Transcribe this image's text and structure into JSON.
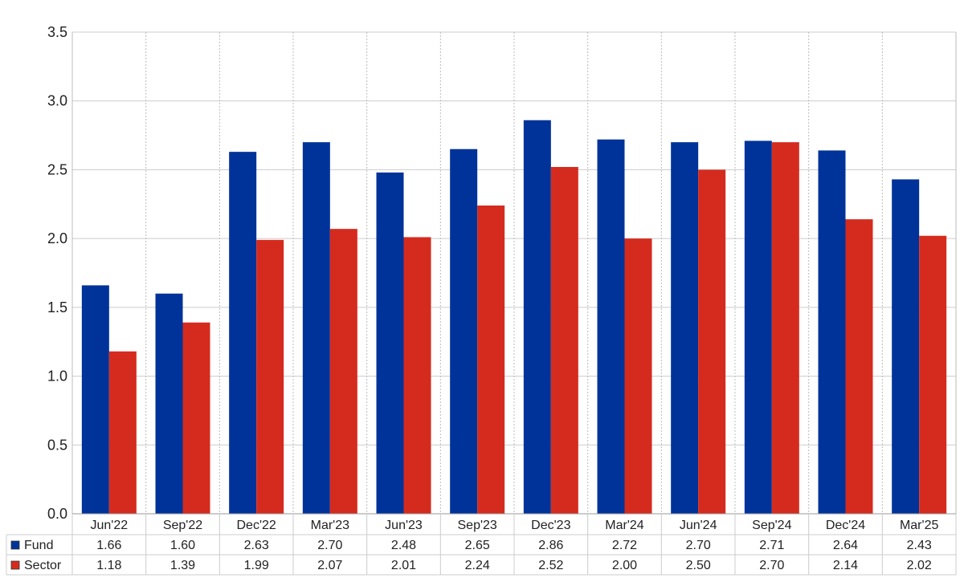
{
  "chart_data": {
    "type": "bar",
    "categories": [
      "Jun'22",
      "Sep'22",
      "Dec'22",
      "Mar'23",
      "Jun'23",
      "Sep'23",
      "Dec'23",
      "Mar'24",
      "Jun'24",
      "Sep'24",
      "Dec'24",
      "Mar'25"
    ],
    "series": [
      {
        "name": "Fund",
        "color": "#003399",
        "values": [
          1.66,
          1.6,
          2.63,
          2.7,
          2.48,
          2.65,
          2.86,
          2.72,
          2.7,
          2.71,
          2.64,
          2.43
        ]
      },
      {
        "name": "Sector",
        "color": "#d52b1e",
        "values": [
          1.18,
          1.39,
          1.99,
          2.07,
          2.01,
          2.24,
          2.52,
          2.0,
          2.5,
          2.7,
          2.14,
          2.02
        ]
      }
    ],
    "table_values": {
      "Fund": [
        "1.66",
        "1.60",
        "2.63",
        "2.70",
        "2.48",
        "2.65",
        "2.86",
        "2.72",
        "2.70",
        "2.71",
        "2.64",
        "2.43"
      ],
      "Sector": [
        "1.18",
        "1.39",
        "1.99",
        "2.07",
        "2.01",
        "2.24",
        "2.52",
        "2.00",
        "2.50",
        "2.70",
        "2.14",
        "2.02"
      ]
    },
    "y_ticks": [
      "0.0",
      "0.5",
      "1.0",
      "1.5",
      "2.0",
      "2.5",
      "3.0",
      "3.5"
    ],
    "ylim": [
      0,
      3.5
    ],
    "title": "",
    "xlabel": "",
    "ylabel": "",
    "grid": true,
    "legend": "data-table"
  }
}
